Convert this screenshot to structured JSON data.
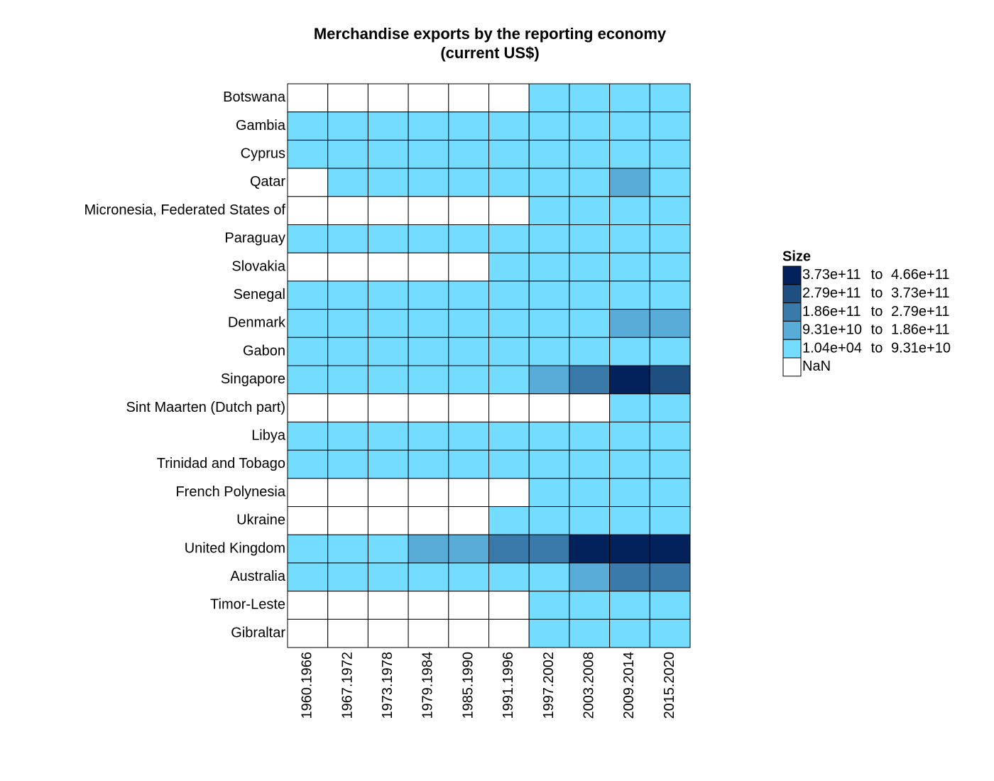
{
  "chart_data": {
    "type": "heatmap",
    "title": [
      "Merchandise exports by the reporting economy",
      "(current US$)"
    ],
    "x": [
      "1960.1966",
      "1967.1972",
      "1973.1978",
      "1979.1984",
      "1985.1990",
      "1991.1996",
      "1997.2002",
      "2003.2008",
      "2009.2014",
      "2015.2020"
    ],
    "categories": [
      "Botswana",
      "Gambia",
      "Cyprus",
      "Qatar",
      "Micronesia, Federated States of",
      "Paraguay",
      "Slovakia",
      "Senegal",
      "Denmark",
      "Gabon",
      "Singapore",
      "Sint Maarten (Dutch part)",
      "Libya",
      "Trinidad and Tobago",
      "French Polynesia",
      "Ukraine",
      "United Kingdom",
      "Australia",
      "Timor-Leste",
      "Gibraltar"
    ],
    "values": [
      [
        null,
        null,
        null,
        null,
        null,
        null,
        46500000000,
        46500000000,
        46500000000,
        46500000000
      ],
      [
        46500000000,
        46500000000,
        46500000000,
        46500000000,
        46500000000,
        46500000000,
        46500000000,
        46500000000,
        46500000000,
        46500000000
      ],
      [
        46500000000,
        46500000000,
        46500000000,
        46500000000,
        46500000000,
        46500000000,
        46500000000,
        46500000000,
        46500000000,
        46500000000
      ],
      [
        null,
        46500000000,
        46500000000,
        46500000000,
        46500000000,
        46500000000,
        46500000000,
        46500000000,
        140000000000,
        46500000000
      ],
      [
        null,
        null,
        null,
        null,
        null,
        null,
        46500000000,
        46500000000,
        46500000000,
        46500000000
      ],
      [
        46500000000,
        46500000000,
        46500000000,
        46500000000,
        46500000000,
        46500000000,
        46500000000,
        46500000000,
        46500000000,
        46500000000
      ],
      [
        null,
        null,
        null,
        null,
        null,
        46500000000,
        46500000000,
        46500000000,
        46500000000,
        46500000000
      ],
      [
        46500000000,
        46500000000,
        46500000000,
        46500000000,
        46500000000,
        46500000000,
        46500000000,
        46500000000,
        46500000000,
        46500000000
      ],
      [
        46500000000,
        46500000000,
        46500000000,
        46500000000,
        46500000000,
        46500000000,
        46500000000,
        46500000000,
        140000000000,
        140000000000
      ],
      [
        46500000000,
        46500000000,
        46500000000,
        46500000000,
        46500000000,
        46500000000,
        46500000000,
        46500000000,
        46500000000,
        46500000000
      ],
      [
        46500000000,
        46500000000,
        46500000000,
        46500000000,
        46500000000,
        46500000000,
        140000000000,
        232000000000,
        420000000000,
        326000000000
      ],
      [
        null,
        null,
        null,
        null,
        null,
        null,
        null,
        null,
        46500000000,
        46500000000
      ],
      [
        46500000000,
        46500000000,
        46500000000,
        46500000000,
        46500000000,
        46500000000,
        46500000000,
        46500000000,
        46500000000,
        46500000000
      ],
      [
        46500000000,
        46500000000,
        46500000000,
        46500000000,
        46500000000,
        46500000000,
        46500000000,
        46500000000,
        46500000000,
        46500000000
      ],
      [
        null,
        null,
        null,
        null,
        null,
        null,
        46500000000,
        46500000000,
        46500000000,
        46500000000
      ],
      [
        null,
        null,
        null,
        null,
        null,
        46500000000,
        46500000000,
        46500000000,
        46500000000,
        46500000000
      ],
      [
        46500000000,
        46500000000,
        46500000000,
        140000000000,
        140000000000,
        232000000000,
        232000000000,
        420000000000,
        420000000000,
        420000000000
      ],
      [
        46500000000,
        46500000000,
        46500000000,
        46500000000,
        46500000000,
        46500000000,
        46500000000,
        140000000000,
        232000000000,
        232000000000
      ],
      [
        null,
        null,
        null,
        null,
        null,
        null,
        46500000000,
        46500000000,
        46500000000,
        46500000000
      ],
      [
        null,
        null,
        null,
        null,
        null,
        null,
        46500000000,
        46500000000,
        46500000000,
        46500000000
      ]
    ],
    "legend": {
      "title": "Size",
      "range_word": "to",
      "bins": [
        {
          "from": {
            "value": 373000000000,
            "label": "3.73e+11"
          },
          "to": {
            "value": 466000000000,
            "label": "4.66e+11"
          },
          "color": "#03215a"
        },
        {
          "from": {
            "value": 279000000000,
            "label": "2.79e+11"
          },
          "to": {
            "value": 373000000000,
            "label": "3.73e+11"
          },
          "color": "#1f4e80"
        },
        {
          "from": {
            "value": 186000000000,
            "label": "1.86e+11"
          },
          "to": {
            "value": 279000000000,
            "label": "2.79e+11"
          },
          "color": "#3a7aab"
        },
        {
          "from": {
            "value": 93100000000,
            "label": "9.31e+10"
          },
          "to": {
            "value": 186000000000,
            "label": "1.86e+11"
          },
          "color": "#59acd8"
        },
        {
          "from": {
            "value": 10400,
            "label": "1.04e+04"
          },
          "to": {
            "value": 93100000000,
            "label": "9.31e+10"
          },
          "color": "#74dcff"
        }
      ],
      "na_label": "NaN",
      "na_color": "#ffffff"
    }
  }
}
